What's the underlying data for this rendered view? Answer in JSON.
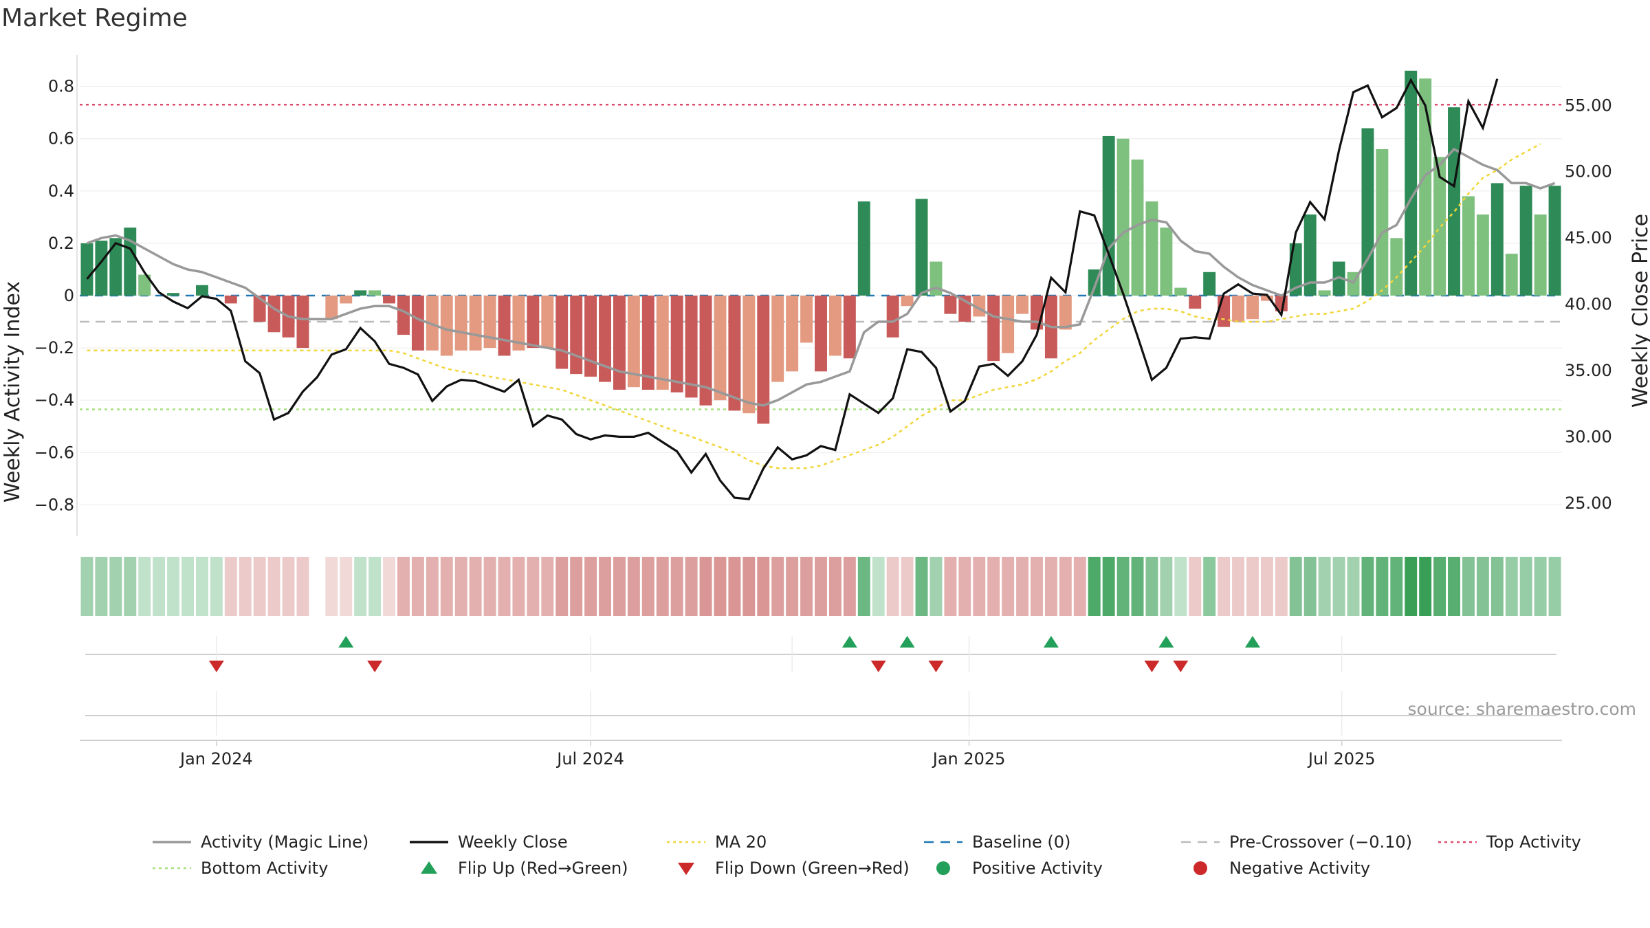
{
  "title": "Market Regime",
  "source": "source: sharemaestro.com",
  "colors": {
    "pos_dark": "#2e8b57",
    "pos_light": "#7ec07e",
    "neg_dark": "#c85a5a",
    "neg_light": "#e39a80",
    "activity": "#999999",
    "close": "#111111",
    "ma": "#f1d63a",
    "baseline": "#1f77b4",
    "precross": "#bbbbbb",
    "top": "#dc4a6e",
    "bottom": "#a6e07a",
    "flip_up": "#22a05a",
    "flip_down": "#cc2a2a"
  },
  "chart_data": {
    "type": "bar",
    "ylabel": "Weekly Activity Index",
    "y2label": "Weekly Close Price",
    "ylim": [
      -0.92,
      0.92
    ],
    "y2lim": [
      22.5,
      58.8
    ],
    "yticks": [
      {
        "v": 0.8,
        "label": "0.8"
      },
      {
        "v": 0.6,
        "label": "0.6"
      },
      {
        "v": 0.4,
        "label": "0.4"
      },
      {
        "v": 0.2,
        "label": "0.2"
      },
      {
        "v": 0,
        "label": "0"
      },
      {
        "v": -0.2,
        "label": "−0.2"
      },
      {
        "v": -0.4,
        "label": "−0.4"
      },
      {
        "v": -0.6,
        "label": "−0.6"
      },
      {
        "v": -0.8,
        "label": "−0.8"
      }
    ],
    "y2ticks": [
      {
        "v": 55,
        "label": "55.00"
      },
      {
        "v": 50,
        "label": "50.00"
      },
      {
        "v": 45,
        "label": "45.00"
      },
      {
        "v": 40,
        "label": "40.00"
      },
      {
        "v": 35,
        "label": "35.00"
      },
      {
        "v": 30,
        "label": "30.00"
      },
      {
        "v": 25,
        "label": "25.00"
      }
    ],
    "xticks": [
      {
        "week": 9.5,
        "label": "Jan 2024"
      },
      {
        "week": 35.5,
        "label": "Jul 2024"
      },
      {
        "week": 61.8,
        "label": "Jan 2025"
      },
      {
        "week": 87.7,
        "label": "Jul 2025"
      }
    ],
    "top_activity": 0.73,
    "bottom_activity": -0.435,
    "pre_crossover": -0.1,
    "baseline": 0,
    "activity_index": [
      0.2,
      0.21,
      0.22,
      0.26,
      0.08,
      0,
      0.01,
      0,
      0.04,
      0,
      -0.03,
      0,
      -0.1,
      -0.14,
      -0.16,
      -0.2,
      0,
      -0.09,
      -0.03,
      0.02,
      0.02,
      -0.03,
      -0.15,
      -0.21,
      -0.21,
      -0.23,
      -0.21,
      -0.21,
      -0.2,
      -0.23,
      -0.21,
      -0.2,
      -0.2,
      -0.28,
      -0.3,
      -0.31,
      -0.33,
      -0.36,
      -0.35,
      -0.36,
      -0.36,
      -0.37,
      -0.39,
      -0.42,
      -0.4,
      -0.44,
      -0.45,
      -0.49,
      -0.33,
      -0.29,
      -0.18,
      -0.29,
      -0.23,
      -0.24,
      0.36,
      0,
      -0.16,
      -0.04,
      0.37,
      0.13,
      -0.07,
      -0.1,
      -0.08,
      -0.25,
      -0.22,
      -0.07,
      -0.13,
      -0.24,
      -0.13,
      0,
      0.1,
      0.61,
      0.6,
      0.52,
      0.36,
      0.26,
      0.03,
      -0.05,
      0.09,
      -0.12,
      -0.1,
      -0.09,
      -0.02,
      -0.06,
      0.2,
      0.31,
      0.02,
      0.13,
      0.09,
      0.64,
      0.56,
      0.22,
      0.86,
      0.83,
      0.53,
      0.72,
      0.38,
      0.31,
      0.43,
      0.16,
      0.42,
      0.31,
      0.42
    ],
    "activity_type": [
      2,
      2,
      2,
      2,
      1,
      2,
      2,
      2,
      2,
      2,
      3,
      3,
      3,
      3,
      3,
      3,
      0,
      4,
      4,
      2,
      1,
      3,
      3,
      3,
      4,
      4,
      4,
      4,
      4,
      3,
      4,
      3,
      4,
      3,
      3,
      3,
      3,
      3,
      4,
      3,
      4,
      3,
      3,
      3,
      4,
      3,
      4,
      3,
      4,
      4,
      4,
      3,
      4,
      3,
      2,
      0,
      3,
      4,
      2,
      1,
      3,
      3,
      4,
      3,
      4,
      4,
      3,
      3,
      4,
      0,
      2,
      2,
      1,
      1,
      1,
      1,
      1,
      3,
      2,
      3,
      4,
      4,
      4,
      3,
      2,
      2,
      1,
      2,
      1,
      2,
      1,
      1,
      2,
      1,
      1,
      2,
      1,
      1,
      2,
      1,
      2,
      1,
      2
    ],
    "magic_line": [
      0.2,
      0.22,
      0.23,
      0.21,
      0.18,
      0.15,
      0.12,
      0.1,
      0.09,
      0.07,
      0.05,
      0.03,
      -0.01,
      -0.05,
      -0.08,
      -0.09,
      -0.09,
      -0.09,
      -0.07,
      -0.05,
      -0.04,
      -0.04,
      -0.06,
      -0.09,
      -0.11,
      -0.13,
      -0.14,
      -0.15,
      -0.16,
      -0.17,
      -0.18,
      -0.19,
      -0.2,
      -0.21,
      -0.23,
      -0.25,
      -0.27,
      -0.29,
      -0.3,
      -0.31,
      -0.32,
      -0.33,
      -0.34,
      -0.35,
      -0.37,
      -0.39,
      -0.41,
      -0.42,
      -0.4,
      -0.37,
      -0.34,
      -0.33,
      -0.31,
      -0.29,
      -0.14,
      -0.1,
      -0.1,
      -0.07,
      0.01,
      0.03,
      0.01,
      -0.02,
      -0.05,
      -0.08,
      -0.09,
      -0.1,
      -0.1,
      -0.12,
      -0.12,
      -0.11,
      0.03,
      0.18,
      0.24,
      0.27,
      0.29,
      0.28,
      0.21,
      0.17,
      0.16,
      0.11,
      0.07,
      0.04,
      0.02,
      0,
      0.03,
      0.05,
      0.05,
      0.07,
      0.05,
      0.14,
      0.24,
      0.27,
      0.37,
      0.46,
      0.5,
      0.56,
      0.53,
      0.5,
      0.48,
      0.43,
      0.43,
      0.41,
      0.43
    ],
    "weekly_close": [
      41.9,
      43.2,
      44.6,
      44.2,
      42.4,
      40.9,
      40.2,
      39.7,
      40.6,
      40.4,
      39.5,
      35.7,
      34.8,
      31.3,
      31.8,
      33.4,
      34.5,
      36.2,
      36.6,
      38.2,
      37.2,
      35.5,
      35.2,
      34.7,
      32.7,
      33.8,
      34.3,
      34.2,
      33.8,
      33.4,
      34.3,
      30.8,
      31.6,
      31.3,
      30.2,
      29.8,
      30.1,
      30.0,
      30.0,
      30.3,
      29.6,
      28.9,
      27.3,
      28.7,
      26.7,
      25.4,
      25.3,
      27.6,
      29.2,
      28.3,
      28.6,
      29.3,
      29.0,
      33.2,
      32.5,
      31.8,
      32.9,
      36.6,
      36.4,
      35.2,
      31.9,
      32.7,
      35.3,
      35.5,
      34.6,
      35.7,
      37.7,
      42.0,
      40.9,
      47.0,
      46.7,
      43.8,
      40.8,
      37.6,
      34.3,
      35.2,
      37.4,
      37.5,
      37.4,
      40.8,
      41.5,
      40.8,
      40.7,
      39.2,
      45.4,
      47.7,
      46.4,
      51.6,
      56.0,
      56.5,
      54.1,
      54.8,
      56.9,
      55.0,
      49.6,
      48.9,
      55.3,
      53.3,
      57.0
    ],
    "close_start_week": 0.5,
    "ma20": [
      -0.21,
      -0.21,
      -0.21,
      -0.21,
      -0.21,
      -0.21,
      -0.21,
      -0.21,
      -0.21,
      -0.21,
      -0.21,
      -0.21,
      -0.21,
      -0.21,
      -0.21,
      -0.21,
      -0.21,
      -0.21,
      -0.21,
      -0.21,
      -0.21,
      -0.21,
      -0.22,
      -0.24,
      -0.26,
      -0.28,
      -0.29,
      -0.3,
      -0.31,
      -0.32,
      -0.33,
      -0.34,
      -0.35,
      -0.36,
      -0.38,
      -0.4,
      -0.42,
      -0.44,
      -0.46,
      -0.48,
      -0.5,
      -0.52,
      -0.54,
      -0.56,
      -0.58,
      -0.6,
      -0.63,
      -0.65,
      -0.66,
      -0.66,
      -0.66,
      -0.65,
      -0.63,
      -0.61,
      -0.59,
      -0.57,
      -0.54,
      -0.5,
      -0.46,
      -0.43,
      -0.4,
      -0.4,
      -0.38,
      -0.36,
      -0.35,
      -0.34,
      -0.32,
      -0.29,
      -0.25,
      -0.22,
      -0.17,
      -0.13,
      -0.09,
      -0.06,
      -0.05,
      -0.05,
      -0.06,
      -0.08,
      -0.09,
      -0.09,
      -0.1,
      -0.1,
      -0.1,
      -0.09,
      -0.08,
      -0.07,
      -0.07,
      -0.06,
      -0.05,
      -0.02,
      0.02,
      0.07,
      0.13,
      0.19,
      0.26,
      0.32,
      0.39,
      0.45,
      0.48,
      0.52,
      0.55,
      0.58
    ],
    "ribbon_alpha": [
      0.45,
      0.45,
      0.45,
      0.45,
      0.3,
      0.3,
      0.3,
      0.3,
      0.3,
      0.3,
      0.3,
      0.3,
      0.3,
      0.3,
      0.3,
      0.3,
      0,
      0.22,
      0.22,
      0.3,
      0.3,
      0.22,
      0.45,
      0.45,
      0.45,
      0.45,
      0.45,
      0.45,
      0.45,
      0.45,
      0.45,
      0.45,
      0.45,
      0.55,
      0.55,
      0.55,
      0.55,
      0.55,
      0.55,
      0.55,
      0.55,
      0.55,
      0.55,
      0.6,
      0.6,
      0.6,
      0.6,
      0.6,
      0.55,
      0.55,
      0.55,
      0.55,
      0.55,
      0.55,
      0.7,
      0.3,
      0.3,
      0.3,
      0.7,
      0.45,
      0.45,
      0.45,
      0.45,
      0.45,
      0.45,
      0.45,
      0.45,
      0.45,
      0.45,
      0.45,
      0.85,
      0.85,
      0.75,
      0.75,
      0.6,
      0.45,
      0.3,
      0.3,
      0.55,
      0.3,
      0.3,
      0.3,
      0.3,
      0.3,
      0.6,
      0.6,
      0.45,
      0.45,
      0.45,
      0.75,
      0.75,
      0.75,
      0.95,
      0.95,
      0.8,
      0.8,
      0.6,
      0.6,
      0.6,
      0.5,
      0.5,
      0.5,
      0.5
    ],
    "ribbon_sign": [
      1,
      1,
      1,
      1,
      1,
      1,
      1,
      1,
      1,
      1,
      -1,
      -1,
      -1,
      -1,
      -1,
      -1,
      0,
      -1,
      -1,
      1,
      1,
      -1,
      -1,
      -1,
      -1,
      -1,
      -1,
      -1,
      -1,
      -1,
      -1,
      -1,
      -1,
      -1,
      -1,
      -1,
      -1,
      -1,
      -1,
      -1,
      -1,
      -1,
      -1,
      -1,
      -1,
      -1,
      -1,
      -1,
      -1,
      -1,
      -1,
      -1,
      -1,
      -1,
      1,
      1,
      -1,
      -1,
      1,
      1,
      -1,
      -1,
      -1,
      -1,
      -1,
      -1,
      -1,
      -1,
      -1,
      -1,
      1,
      1,
      1,
      1,
      1,
      1,
      1,
      -1,
      1,
      -1,
      -1,
      -1,
      -1,
      -1,
      1,
      1,
      1,
      1,
      1,
      1,
      1,
      1,
      1,
      1,
      1,
      1,
      1,
      1,
      1,
      1,
      1,
      1,
      1
    ],
    "flip_up_weeks": [
      18.5,
      53.5,
      57.5,
      67.5,
      75.5,
      81.5
    ],
    "flip_down_weeks": [
      9.5,
      20.5,
      55.5,
      59.5,
      74.5,
      76.5
    ],
    "legend": [
      {
        "label": "Activity (Magic Line)",
        "kind": "line",
        "color": "#999999"
      },
      {
        "label": "Weekly Close",
        "kind": "line",
        "color": "#111111"
      },
      {
        "label": "MA 20",
        "kind": "dotted",
        "color": "#f1d63a"
      },
      {
        "label": "Baseline (0)",
        "kind": "dashed",
        "color": "#1f77b4"
      },
      {
        "label": "Pre-Crossover (−0.10)",
        "kind": "dashed",
        "color": "#bbbbbb"
      },
      {
        "label": "Top Activity",
        "kind": "dotted",
        "color": "#dc4a6e"
      },
      {
        "label": "Bottom Activity",
        "kind": "dotted",
        "color": "#a6e07a"
      },
      {
        "label": "Flip Up (Red→Green)",
        "kind": "tri-up",
        "color": "#22a05a"
      },
      {
        "label": "Flip Down (Green→Red)",
        "kind": "tri-down",
        "color": "#cc2a2a"
      },
      {
        "label": "Positive Activity",
        "kind": "dot",
        "color": "#22a05a"
      },
      {
        "label": "Negative Activity",
        "kind": "dot",
        "color": "#cc2a2a"
      }
    ]
  }
}
